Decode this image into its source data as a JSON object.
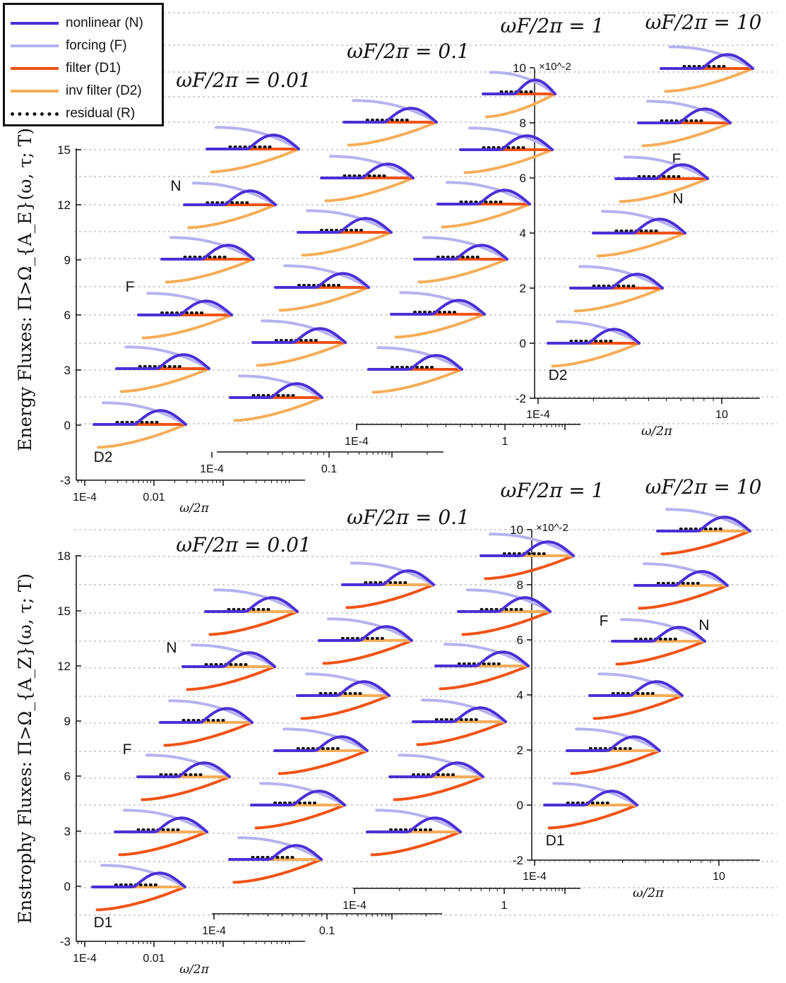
{
  "colors": {
    "nonlinear": "#4b2fd6",
    "forcing": "#b6b2f0",
    "filter": "#f05314",
    "inv_filter": "#f6ad59",
    "residual": "#111111",
    "gridline": "#b7b7b7"
  },
  "legend": {
    "items": [
      {
        "label": "nonlinear (N)",
        "series": "nonlinear",
        "style": "solid"
      },
      {
        "label": "forcing (F)",
        "series": "forcing",
        "style": "solid"
      },
      {
        "label": "filter (D1)",
        "series": "filter",
        "style": "solid"
      },
      {
        "label": "inv filter (D2)",
        "series": "inv_filter",
        "style": "solid"
      },
      {
        "label": "residual (R)",
        "series": "residual",
        "style": "dotted"
      }
    ]
  },
  "chart_data": [
    {
      "type": "line",
      "title": "Energy Fluxes",
      "ylabel": "Energy Fluxes:  Π>Ω_{A_E}(ω, τ; T)",
      "xlabel": "ω/2π",
      "forcing_labels": [
        "ωF/2π = 0.01",
        "ωF/2π = 0.1",
        "ωF/2π = 1",
        "ωF/2π = 10"
      ],
      "left_axis": {
        "ylim": [
          -3,
          15
        ],
        "ticks": [
          "-3",
          "0",
          "3",
          "6",
          "9",
          "12",
          "15"
        ],
        "x_ticks": [
          "1E-4",
          "0.01"
        ]
      },
      "offset_axis": {
        "x_ticks": [
          "1E-4",
          "0.1"
        ]
      },
      "mid_axis": {
        "x_ticks": [
          "1E-4",
          "1"
        ]
      },
      "right_axis": {
        "ylim": [
          -2,
          10
        ],
        "ticks": [
          "-2",
          "0",
          "2",
          "4",
          "6",
          "8",
          "10"
        ],
        "multiplier": "×10^-2",
        "x_ticks": [
          "1E-4",
          "10"
        ],
        "xlabel": "ω/2π"
      },
      "annotations": [
        "N",
        "F",
        "D2",
        "F",
        "N",
        "D2"
      ],
      "series": [
        "nonlinear",
        "forcing",
        "filter",
        "inv_filter",
        "residual"
      ],
      "curves": "schematic reconstruction of stacked flux curves, each shifted vertically by 1.5 units per column step"
    },
    {
      "type": "line",
      "title": "Enstrophy Fluxes",
      "ylabel": "Enstrophy Fluxes:  Π>Ω_{A_Z}(ω, τ; T)",
      "xlabel": "ω/2π",
      "forcing_labels": [
        "ωF/2π = 0.01",
        "ωF/2π = 0.1",
        "ωF/2π = 1",
        "ωF/2π = 10"
      ],
      "left_axis": {
        "ylim": [
          -3,
          18
        ],
        "ticks": [
          "-3",
          "0",
          "3",
          "6",
          "9",
          "12",
          "15",
          "18"
        ],
        "x_ticks": [
          "1E-4",
          "0.01"
        ]
      },
      "offset_axis": {
        "x_ticks": [
          "1E-4",
          "0.1"
        ]
      },
      "mid_axis": {
        "x_ticks": [
          "1E-4",
          "1"
        ]
      },
      "right_axis": {
        "ylim": [
          -2,
          10
        ],
        "ticks": [
          "-2",
          "0",
          "2",
          "4",
          "6",
          "8",
          "10"
        ],
        "multiplier": "×10^-2",
        "x_ticks": [
          "1E-4",
          "10"
        ],
        "xlabel": "ω/2π"
      },
      "annotations": [
        "N",
        "F",
        "D1",
        "F",
        "N",
        "D1"
      ],
      "series": [
        "nonlinear",
        "forcing",
        "filter",
        "inv_filter",
        "residual"
      ],
      "curves": "schematic reconstruction of stacked flux curves, each shifted vertically by 1.5 units per column step"
    }
  ]
}
